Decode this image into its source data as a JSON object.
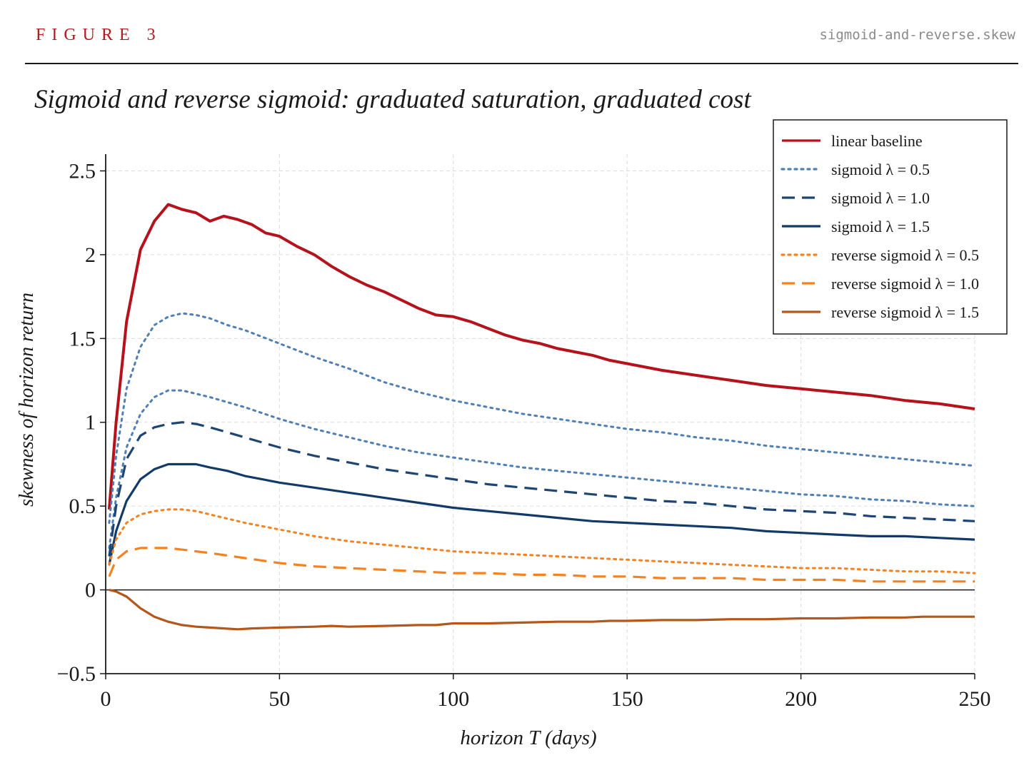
{
  "header": {
    "figure_label": "FIGURE 3",
    "filename": "sigmoid-and-reverse.skew"
  },
  "chart_data": {
    "type": "line",
    "title": "Sigmoid and reverse sigmoid: graduated saturation, graduated cost",
    "xlabel": "horizon T (days)",
    "ylabel": "skewness of horizon return",
    "xlim": [
      0,
      250
    ],
    "ylim": [
      -0.5,
      2.6
    ],
    "xticks": [
      0,
      50,
      100,
      150,
      200,
      250
    ],
    "xtick_labels": [
      "0",
      "50",
      "100",
      "150",
      "200",
      "250"
    ],
    "yticks": [
      -0.5,
      0,
      0.5,
      1,
      1.5,
      2,
      2.5
    ],
    "ytick_labels": [
      "−0.5",
      "0",
      "0.5",
      "1",
      "1.5",
      "2",
      "2.5"
    ],
    "grid": true,
    "legend_position": "top-right",
    "series": [
      {
        "name": "linear baseline",
        "color": "#b5121b",
        "dash": "solid",
        "x": [
          1,
          3,
          6,
          10,
          14,
          18,
          22,
          26,
          30,
          34,
          38,
          42,
          46,
          50,
          55,
          60,
          65,
          70,
          75,
          80,
          85,
          90,
          95,
          100,
          105,
          110,
          115,
          120,
          125,
          130,
          135,
          140,
          145,
          150,
          160,
          170,
          180,
          190,
          200,
          210,
          220,
          230,
          240,
          250
        ],
        "y": [
          0.48,
          1.0,
          1.6,
          2.03,
          2.2,
          2.3,
          2.27,
          2.25,
          2.2,
          2.23,
          2.21,
          2.18,
          2.13,
          2.11,
          2.05,
          2.0,
          1.93,
          1.87,
          1.82,
          1.78,
          1.73,
          1.68,
          1.64,
          1.63,
          1.6,
          1.56,
          1.52,
          1.49,
          1.47,
          1.44,
          1.42,
          1.4,
          1.37,
          1.35,
          1.31,
          1.28,
          1.25,
          1.22,
          1.2,
          1.18,
          1.16,
          1.13,
          1.11,
          1.08
        ]
      },
      {
        "name": "sigmoid  λ = 0.5",
        "color": "#4f7fb5",
        "dash": "dotted",
        "x": [
          1,
          3,
          6,
          10,
          14,
          18,
          22,
          26,
          30,
          35,
          40,
          50,
          60,
          70,
          80,
          90,
          100,
          110,
          120,
          130,
          140,
          150,
          160,
          170,
          180,
          190,
          200,
          210,
          220,
          230,
          240,
          250
        ],
        "y": [
          0.4,
          0.8,
          1.2,
          1.45,
          1.58,
          1.63,
          1.65,
          1.64,
          1.62,
          1.58,
          1.55,
          1.47,
          1.39,
          1.32,
          1.24,
          1.18,
          1.13,
          1.09,
          1.05,
          1.02,
          0.99,
          0.96,
          0.94,
          0.91,
          0.89,
          0.86,
          0.84,
          0.82,
          0.8,
          0.78,
          0.76,
          0.74
        ]
      },
      {
        "name": "sigmoid  λ = 0.5",
        "color": "#4f7fb5",
        "dash": "dotted",
        "x": [
          1,
          3,
          6,
          10,
          14,
          18,
          22,
          26,
          30,
          35,
          40,
          50,
          60,
          70,
          80,
          90,
          100,
          110,
          120,
          130,
          140,
          150,
          160,
          170,
          180,
          190,
          200,
          210,
          220,
          230,
          240,
          250
        ],
        "y": [
          0.25,
          0.55,
          0.85,
          1.05,
          1.15,
          1.19,
          1.19,
          1.17,
          1.15,
          1.12,
          1.09,
          1.02,
          0.96,
          0.91,
          0.86,
          0.82,
          0.79,
          0.76,
          0.73,
          0.71,
          0.69,
          0.67,
          0.65,
          0.63,
          0.61,
          0.59,
          0.57,
          0.56,
          0.54,
          0.53,
          0.51,
          0.5
        ]
      },
      {
        "name": "sigmoid  λ = 1.0",
        "color": "#1e4473",
        "dash": "dashed",
        "x": [
          1,
          3,
          6,
          10,
          14,
          18,
          22,
          26,
          30,
          35,
          40,
          50,
          60,
          70,
          80,
          90,
          100,
          110,
          120,
          130,
          140,
          150,
          160,
          170,
          180,
          190,
          200,
          210,
          220,
          230,
          240,
          250
        ],
        "y": [
          0.2,
          0.5,
          0.78,
          0.92,
          0.97,
          0.99,
          1.0,
          0.99,
          0.97,
          0.94,
          0.91,
          0.85,
          0.8,
          0.76,
          0.72,
          0.69,
          0.66,
          0.63,
          0.61,
          0.59,
          0.57,
          0.55,
          0.53,
          0.52,
          0.5,
          0.48,
          0.47,
          0.46,
          0.44,
          0.43,
          0.42,
          0.41
        ]
      },
      {
        "name": "sigmoid  λ = 1.5",
        "color": "#123a68",
        "dash": "solid",
        "x": [
          1,
          3,
          6,
          10,
          14,
          18,
          22,
          26,
          30,
          35,
          40,
          45,
          50,
          60,
          70,
          80,
          90,
          100,
          105,
          110,
          120,
          130,
          140,
          150,
          160,
          170,
          180,
          190,
          200,
          210,
          220,
          230,
          240,
          250
        ],
        "y": [
          0.15,
          0.35,
          0.53,
          0.66,
          0.72,
          0.75,
          0.75,
          0.75,
          0.73,
          0.71,
          0.68,
          0.66,
          0.64,
          0.61,
          0.58,
          0.55,
          0.52,
          0.49,
          0.48,
          0.47,
          0.45,
          0.43,
          0.41,
          0.4,
          0.39,
          0.38,
          0.37,
          0.35,
          0.34,
          0.33,
          0.32,
          0.32,
          0.31,
          0.3
        ]
      },
      {
        "name": "reverse sigmoid  λ = 0.5",
        "color": "#f58220",
        "dash": "dotted",
        "x": [
          1,
          3,
          6,
          10,
          14,
          18,
          22,
          26,
          30,
          40,
          50,
          60,
          70,
          80,
          90,
          100,
          110,
          120,
          130,
          140,
          150,
          160,
          170,
          180,
          190,
          200,
          210,
          220,
          230,
          240,
          250
        ],
        "y": [
          0.15,
          0.3,
          0.4,
          0.45,
          0.47,
          0.48,
          0.48,
          0.47,
          0.45,
          0.4,
          0.36,
          0.32,
          0.29,
          0.27,
          0.25,
          0.23,
          0.22,
          0.21,
          0.2,
          0.19,
          0.18,
          0.17,
          0.16,
          0.15,
          0.14,
          0.13,
          0.13,
          0.12,
          0.11,
          0.11,
          0.1
        ]
      },
      {
        "name": "reverse sigmoid  λ = 1.0",
        "color": "#f58220",
        "dash": "dashed",
        "x": [
          1,
          3,
          6,
          10,
          14,
          18,
          22,
          26,
          30,
          40,
          50,
          60,
          70,
          80,
          90,
          100,
          110,
          120,
          130,
          140,
          150,
          160,
          170,
          180,
          190,
          200,
          210,
          220,
          230,
          240,
          250
        ],
        "y": [
          0.08,
          0.18,
          0.23,
          0.25,
          0.25,
          0.25,
          0.24,
          0.23,
          0.22,
          0.19,
          0.16,
          0.14,
          0.13,
          0.12,
          0.11,
          0.1,
          0.1,
          0.09,
          0.09,
          0.08,
          0.08,
          0.07,
          0.07,
          0.07,
          0.06,
          0.06,
          0.06,
          0.05,
          0.05,
          0.05,
          0.05
        ]
      },
      {
        "name": "reverse sigmoid  λ = 1.5",
        "color": "#b5561a",
        "dash": "solid",
        "x": [
          1,
          3,
          6,
          10,
          14,
          18,
          22,
          26,
          30,
          34,
          38,
          42,
          50,
          60,
          65,
          70,
          80,
          90,
          95,
          100,
          110,
          120,
          130,
          140,
          145,
          150,
          160,
          170,
          180,
          190,
          200,
          210,
          220,
          230,
          235,
          240,
          250
        ],
        "y": [
          0.0,
          -0.01,
          -0.04,
          -0.11,
          -0.16,
          -0.19,
          -0.21,
          -0.22,
          -0.225,
          -0.23,
          -0.235,
          -0.23,
          -0.225,
          -0.22,
          -0.215,
          -0.22,
          -0.215,
          -0.21,
          -0.21,
          -0.2,
          -0.2,
          -0.195,
          -0.19,
          -0.19,
          -0.185,
          -0.185,
          -0.18,
          -0.18,
          -0.175,
          -0.175,
          -0.17,
          -0.17,
          -0.165,
          -0.165,
          -0.16,
          -0.16,
          -0.16
        ]
      }
    ]
  }
}
